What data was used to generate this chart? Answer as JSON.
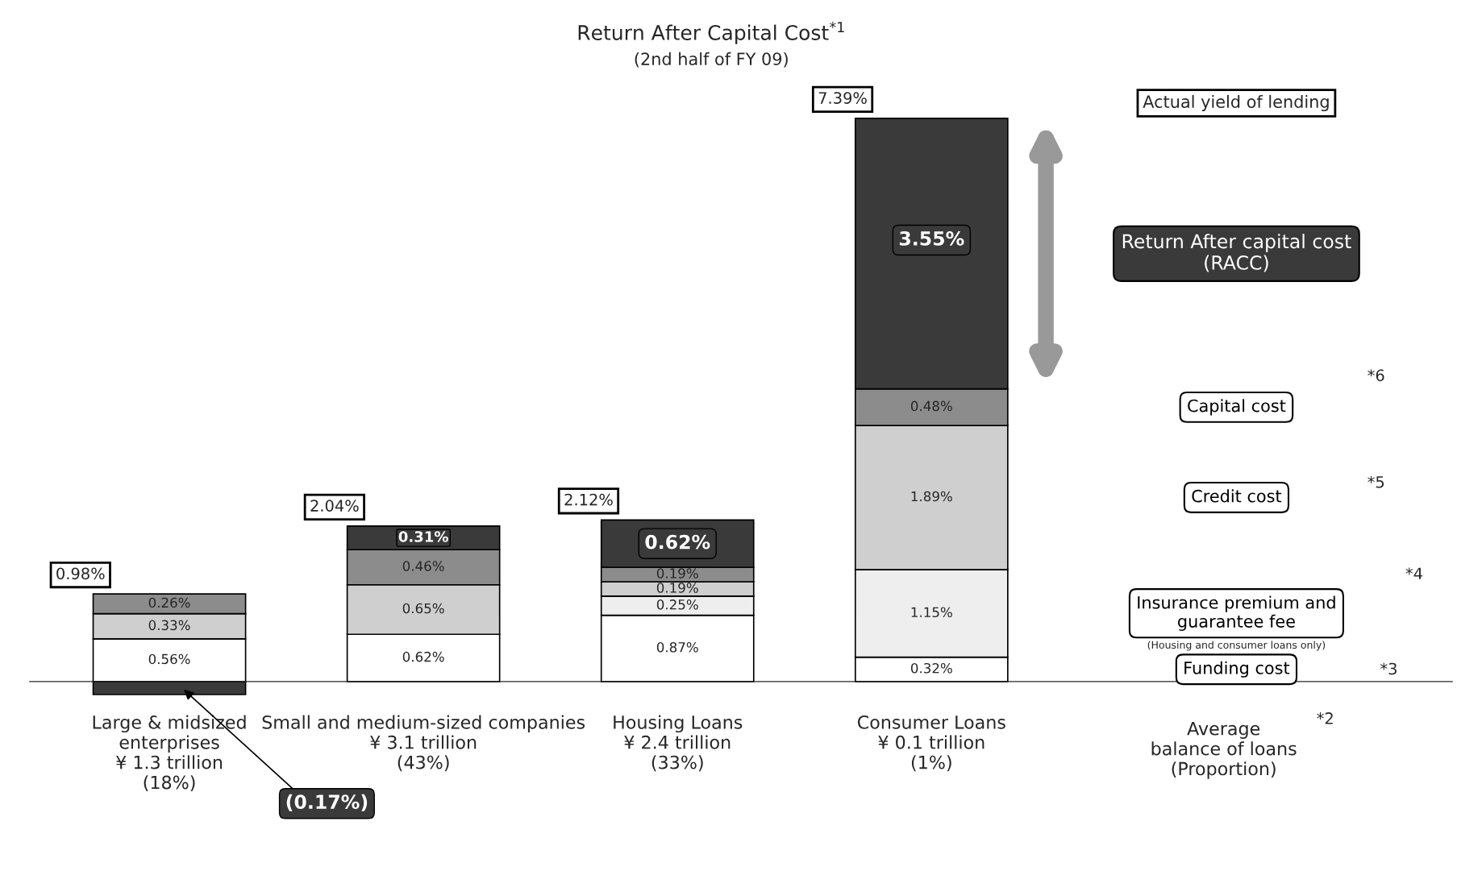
{
  "chart_data": {
    "type": "bar",
    "stacked": true,
    "title": "Return After Capital Cost$^{*1}$",
    "subtitle": "(2nd half of FY 09)",
    "categories": [
      "Large & midsized\nenterprises\n¥ 1.3 trillion\n(18%)",
      "Small and medium-sized companies\n¥ 3.1 trillion\n(43%)",
      "Housing Loans\n¥ 2.4 trillion\n(33%)",
      "Consumer Loans\n¥ 0.1 trillion\n(1%)"
    ],
    "series": [
      {
        "name": "Funding cost",
        "color": "#ffffff",
        "values": [
          0.56,
          0.62,
          0.87,
          0.32
        ],
        "value_labels": [
          "0.56%",
          "0.62%",
          "0.87%",
          "0.32%"
        ]
      },
      {
        "name": "Insurance premium and\nguarantee fee",
        "color": "#eeeeee",
        "values": [
          null,
          null,
          0.25,
          1.15
        ],
        "value_labels": [
          null,
          null,
          "0.25%",
          "1.15%"
        ]
      },
      {
        "name": "Credit cost",
        "color": "#cfcfcf",
        "values": [
          0.33,
          0.65,
          0.19,
          1.89
        ],
        "value_labels": [
          "0.33%",
          "0.65%",
          "0.19%",
          "1.89%"
        ]
      },
      {
        "name": "Capital cost",
        "color": "#8c8c8c",
        "values": [
          0.26,
          0.46,
          0.19,
          0.48
        ],
        "value_labels": [
          "0.26%",
          "0.46%",
          "0.19%",
          "0.48%"
        ]
      },
      {
        "name": "Return After capital cost\n(RACC)",
        "color": "#3a3a3a",
        "values": [
          -0.17,
          0.31,
          0.62,
          3.55
        ],
        "value_labels": [
          "(0.17%)",
          "0.31%",
          "0.62%",
          "3.55%"
        ]
      }
    ],
    "totals": [
      "0.98%",
      "2.04%",
      "2.12%",
      "7.39%"
    ],
    "ylim": [
      -0.2,
      7.8
    ],
    "tick_labels": "x",
    "legend": "right",
    "annotations": [
      "Actual yield of lending",
      "*6",
      "*5",
      "*4",
      "(Housing and consumer loans only)",
      "*3",
      "Average\nbalance of loans\n(Proportion)",
      "*2"
    ]
  }
}
